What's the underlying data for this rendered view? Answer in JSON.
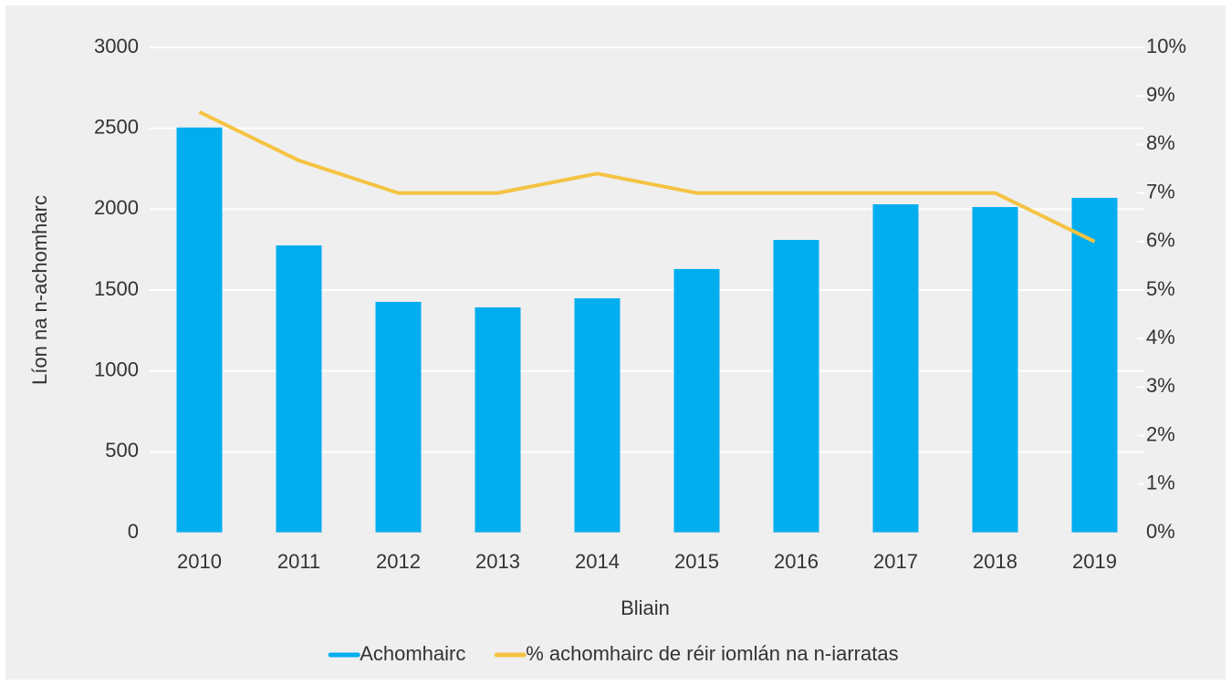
{
  "chart_data": {
    "type": "bar",
    "categories": [
      "2010",
      "2011",
      "2012",
      "2013",
      "2014",
      "2015",
      "2016",
      "2017",
      "2018",
      "2019"
    ],
    "series": [
      {
        "name": "Achomhairc",
        "color": "#00aeef",
        "type": "bar",
        "values": [
          2505,
          1776,
          1427,
          1393,
          1449,
          1630,
          1810,
          2030,
          2013,
          2070
        ]
      },
      {
        "name": "% achomhairc de réir iomlán na n-iarratas",
        "color": "#f5c342",
        "type": "line",
        "axis": "y2",
        "values": [
          8.67,
          7.67,
          7.0,
          7.0,
          7.4,
          7.0,
          7.0,
          7.0,
          7.0,
          6.0
        ]
      }
    ],
    "xlabel": "Bliain",
    "ylabel": "Líon na n-achomharc",
    "ylim": [
      0,
      3000
    ],
    "yticks": [
      0,
      500,
      1000,
      1500,
      2000,
      2500,
      3000
    ],
    "y2lim": [
      0,
      10
    ],
    "y2ticks": [
      {
        "value": 0,
        "label": "0%"
      },
      {
        "value": 1,
        "label": "1%"
      },
      {
        "value": 2,
        "label": "2%"
      },
      {
        "value": 3,
        "label": "3%"
      },
      {
        "value": 4,
        "label": "4%"
      },
      {
        "value": 5,
        "label": "5%"
      },
      {
        "value": 6,
        "label": "6%"
      },
      {
        "value": 7,
        "label": "7%"
      },
      {
        "value": 8,
        "label": "8%"
      },
      {
        "value": 9,
        "label": "9%"
      },
      {
        "value": 10,
        "label": "10%"
      }
    ],
    "grid": true,
    "legend": "bottom"
  }
}
